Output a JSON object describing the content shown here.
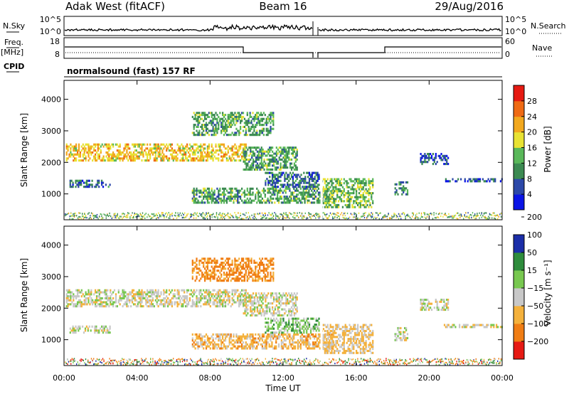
{
  "header": {
    "radar": "Adak West (fitACF)",
    "beam": "Beam 16",
    "date": "29/Aug/2016"
  },
  "panels": {
    "nsky_label": "N.Sky",
    "nsky_ticks": [
      "10^5",
      "10^0"
    ],
    "nsearch_label": "N.Search",
    "nsearch_ticks": [
      "10^5",
      "10^0"
    ],
    "freq_label": "Freq.",
    "freq_unit": "[MHz]",
    "freq_ticks": [
      "18",
      "8"
    ],
    "nave_label": "Nave",
    "nave_ticks": [
      "60",
      "0"
    ],
    "cpid_label": "CPID",
    "cpid_text": "normalsound (fast) 157 RF"
  },
  "colors": {
    "power_scale": [
      "#0a14e6",
      "#2c48a8",
      "#3c8a52",
      "#5ab85a",
      "#e8e233",
      "#f2a81e",
      "#ef6a14",
      "#e61a12"
    ],
    "velocity_scale": [
      "#e61a14",
      "#f07d14",
      "#f4b13c",
      "#c8c8c8",
      "#78c850",
      "#2e8c3c",
      "#1b2ea8"
    ],
    "gray": "#c8c8c8"
  },
  "chart_data": [
    {
      "type": "heatmap",
      "name": "power",
      "ylabel": "Slant Range [km]",
      "x_unit": "hours UT",
      "xlim": [
        0,
        24
      ],
      "ylim": [
        180,
        4600
      ],
      "yticks": [
        1000,
        2000,
        3000,
        4000
      ],
      "colorbar_label": "Power [dB]",
      "colorbar_ticks": [
        4,
        8,
        12,
        16,
        20,
        24,
        28
      ],
      "colorbar_range": [
        0,
        32
      ],
      "echo_regions": [
        {
          "label": "main band",
          "t0": 0.1,
          "t1": 10.0,
          "r0": 2050,
          "r1": 2600,
          "value": 20
        },
        {
          "label": "main band extension",
          "t0": 9.8,
          "t1": 12.8,
          "r0": 1750,
          "r1": 2500,
          "value": 12
        },
        {
          "label": "lower band",
          "t0": 7.0,
          "t1": 14.8,
          "r0": 700,
          "r1": 1200,
          "value": 12
        },
        {
          "label": "post gap near range",
          "t0": 14.1,
          "t1": 16.9,
          "r0": 600,
          "r1": 1500,
          "value": 14
        },
        {
          "label": "sparse patch",
          "t0": 11.0,
          "t1": 14.0,
          "r0": 1200,
          "r1": 1700,
          "value": 8
        },
        {
          "label": "upper patches",
          "t0": 7.0,
          "t1": 11.5,
          "r0": 2900,
          "r1": 3600,
          "value": 12
        },
        {
          "label": "early near band",
          "t0": 0.3,
          "t1": 2.5,
          "r0": 1250,
          "r1": 1450,
          "value": 8
        },
        {
          "label": "afternoon patch",
          "t0": 18.1,
          "t1": 18.8,
          "r0": 1000,
          "r1": 1400,
          "value": 10
        },
        {
          "label": "late patch",
          "t0": 19.5,
          "t1": 21.0,
          "r0": 1950,
          "r1": 2300,
          "value": 6
        },
        {
          "label": "late near band",
          "t0": 20.8,
          "t1": 24.0,
          "r0": 1400,
          "r1": 1500,
          "value": 6
        }
      ]
    },
    {
      "type": "heatmap",
      "name": "velocity",
      "ylabel": "Slant Range [km]",
      "xlabel": "Time UT",
      "xticks": [
        "00:00",
        "04:00",
        "08:00",
        "12:00",
        "16:00",
        "20:00",
        "00:00"
      ],
      "xlim": [
        0,
        24
      ],
      "ylim": [
        180,
        4600
      ],
      "yticks": [
        1000,
        2000,
        3000,
        4000
      ],
      "colorbar_label": "Velocity [m s⁻¹]",
      "colorbar_ticks": [
        "200",
        "100",
        "50",
        "15",
        "−15",
        "−50",
        "−100",
        "−200"
      ],
      "echo_regions": [
        {
          "label": "main band",
          "t0": 0.1,
          "t1": 10.0,
          "r0": 2050,
          "r1": 2600,
          "value": 0
        },
        {
          "label": "main band extension",
          "t0": 9.8,
          "t1": 12.8,
          "r0": 1750,
          "r1": 2500,
          "value": 0
        },
        {
          "label": "lower band",
          "t0": 7.0,
          "t1": 14.8,
          "r0": 700,
          "r1": 1200,
          "value": -30
        },
        {
          "label": "post gap near range",
          "t0": 14.1,
          "t1": 16.9,
          "r0": 600,
          "r1": 1500,
          "value": -20
        },
        {
          "label": "sparse patch",
          "t0": 11.0,
          "t1": 14.0,
          "r0": 1200,
          "r1": 1700,
          "value": 30
        },
        {
          "label": "upper patches",
          "t0": 7.0,
          "t1": 11.5,
          "r0": 2900,
          "r1": 3600,
          "value": -60
        },
        {
          "label": "early near band",
          "t0": 0.3,
          "t1": 2.5,
          "r0": 1250,
          "r1": 1450,
          "value": 0
        },
        {
          "label": "afternoon patch",
          "t0": 18.1,
          "t1": 18.8,
          "r0": 1000,
          "r1": 1400,
          "value": 0
        },
        {
          "label": "late patch",
          "t0": 19.5,
          "t1": 21.0,
          "r0": 1950,
          "r1": 2300,
          "value": 0
        },
        {
          "label": "late near band",
          "t0": 20.8,
          "t1": 24.0,
          "r0": 1400,
          "r1": 1500,
          "value": 0
        }
      ]
    }
  ]
}
